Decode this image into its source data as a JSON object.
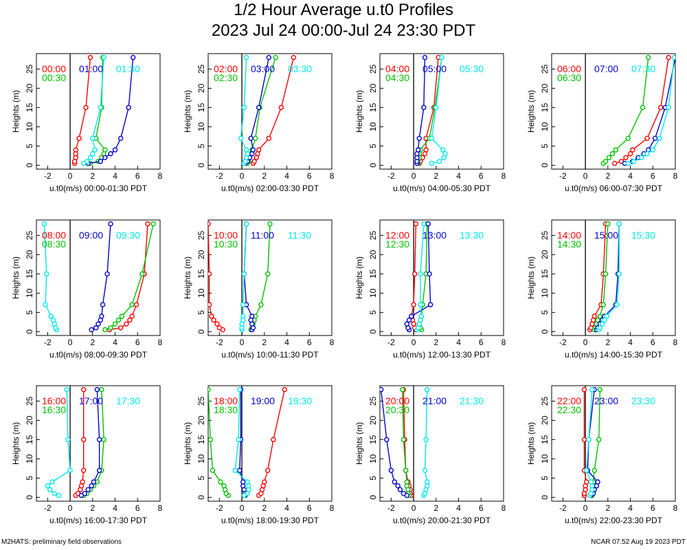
{
  "title": "1/2 Hour Average u.t0 Profiles",
  "subtitle": "2023 Jul 24 00:00-Jul 24 23:30 PDT",
  "footer_left": "M2HATS: preliminary field observations",
  "footer_right": "NCAR 07:52 Aug 19 2023 PDT",
  "colors": {
    "red": "#ff0000",
    "green": "#00c000",
    "blue": "#0000cc",
    "cyan": "#00e8e8"
  },
  "chart_data": {
    "type": "line",
    "ylabel": "Heights (m)",
    "xlim": [
      -3,
      8
    ],
    "ylim": [
      -1,
      29
    ],
    "xticks": [
      -2,
      0,
      2,
      4,
      6,
      8
    ],
    "yticks": [
      0,
      5,
      10,
      15,
      20,
      25
    ],
    "heights": [
      0.5,
      1,
      2,
      3,
      4,
      7,
      15,
      28
    ],
    "panels": [
      {
        "xlabel": "u.t0(m/s) 00:00-01:30 PDT",
        "series": [
          {
            "name": "00:00",
            "color": "red",
            "values": [
              0.4,
              0.4,
              0.5,
              0.5,
              0.5,
              0.8,
              1.4,
              1.8
            ]
          },
          {
            "name": "00:30",
            "color": "green",
            "values": [
              1.8,
              2.5,
              2.8,
              3.0,
              3.1,
              2.3,
              2.8,
              2.9
            ]
          },
          {
            "name": "01:00",
            "color": "blue",
            "values": [
              1.6,
              2.7,
              3.1,
              3.6,
              4.0,
              4.5,
              5.2,
              5.6
            ]
          },
          {
            "name": "01:30",
            "color": "cyan",
            "values": [
              1.2,
              1.5,
              1.8,
              2.0,
              2.2,
              2.0,
              2.7,
              3.0
            ]
          }
        ]
      },
      {
        "xlabel": "u.t0(m/s) 02:00-03:30 PDT",
        "series": [
          {
            "name": "02:00",
            "color": "red",
            "values": [
              1.0,
              1.1,
              1.3,
              1.4,
              1.5,
              2.4,
              3.5,
              4.6
            ]
          },
          {
            "name": "02:30",
            "color": "green",
            "values": [
              0.5,
              0.6,
              0.7,
              0.8,
              0.9,
              1.2,
              1.6,
              3.0
            ]
          },
          {
            "name": "03:00",
            "color": "blue",
            "values": [
              0.3,
              0.5,
              0.7,
              0.9,
              1.0,
              0.8,
              1.5,
              2.4
            ]
          },
          {
            "name": "03:30",
            "color": "cyan",
            "values": [
              0.2,
              0.3,
              0.4,
              0.5,
              0.4,
              -0.1,
              0.2,
              0.4
            ]
          }
        ]
      },
      {
        "xlabel": "u.t0(m/s) 04:00-05:30 PDT",
        "series": [
          {
            "name": "04:00",
            "color": "red",
            "values": [
              0.5,
              0.6,
              0.8,
              1.0,
              1.1,
              1.1,
              1.8,
              2.2
            ]
          },
          {
            "name": "04:30",
            "color": "green",
            "values": [
              0.4,
              0.4,
              0.5,
              0.5,
              0.6,
              1.4,
              1.9,
              2.5
            ]
          },
          {
            "name": "05:00",
            "color": "blue",
            "values": [
              0.3,
              0.3,
              0.3,
              0.3,
              0.4,
              0.5,
              0.9,
              1.0
            ]
          },
          {
            "name": "05:30",
            "color": "cyan",
            "values": [
              1.6,
              2.3,
              2.7,
              2.8,
              2.6,
              1.6,
              2.0,
              2.5
            ]
          }
        ]
      },
      {
        "xlabel": "u.t0(m/s) 06:00-07:30 PDT",
        "series": [
          {
            "name": "06:00",
            "color": "red",
            "values": [
              2.6,
              3.2,
              3.6,
              4.0,
              4.2,
              5.5,
              6.7,
              7.4
            ]
          },
          {
            "name": "06:30",
            "color": "green",
            "values": [
              1.6,
              1.8,
              2.1,
              2.4,
              2.7,
              3.8,
              5.1,
              5.6
            ]
          },
          {
            "name": "07:00",
            "color": "blue",
            "values": [
              3.5,
              4.2,
              4.7,
              5.2,
              5.6,
              6.2,
              7.1,
              8.0
            ]
          },
          {
            "name": "07:30",
            "color": "cyan",
            "values": [
              3.8,
              4.3,
              5.0,
              5.5,
              6.0,
              6.6,
              7.4,
              7.9
            ]
          }
        ]
      },
      {
        "xlabel": "u.t0(m/s) 08:00-09:30 PDT",
        "series": [
          {
            "name": "08:00",
            "color": "red",
            "values": [
              3.5,
              4.5,
              5.0,
              5.3,
              5.5,
              5.9,
              6.6,
              6.9
            ]
          },
          {
            "name": "08:30",
            "color": "green",
            "values": [
              3.1,
              3.6,
              4.0,
              4.3,
              4.6,
              5.5,
              6.4,
              7.4
            ]
          },
          {
            "name": "09:00",
            "color": "blue",
            "values": [
              1.9,
              2.3,
              2.5,
              2.7,
              2.8,
              2.9,
              3.3,
              3.6
            ]
          },
          {
            "name": "09:30",
            "color": "cyan",
            "values": [
              -1.2,
              -1.3,
              -1.4,
              -1.5,
              -1.7,
              -2.2,
              -2.1,
              -2.3
            ]
          }
        ]
      },
      {
        "xlabel": "u.t0(m/s) 10:00-11:30 PDT",
        "series": [
          {
            "name": "10:00",
            "color": "red",
            "values": [
              -1.7,
              -2.0,
              -2.2,
              -2.5,
              -2.7,
              -2.9,
              -2.9,
              -3.0
            ]
          },
          {
            "name": "10:30",
            "color": "green",
            "values": [
              0.8,
              0.9,
              1.0,
              1.1,
              1.2,
              1.7,
              2.3,
              2.5
            ]
          },
          {
            "name": "11:00",
            "color": "blue",
            "values": [
              0.9,
              1.0,
              0.9,
              0.8,
              0.9,
              0.4,
              0.2,
              0.4
            ]
          },
          {
            "name": "11:30",
            "color": "cyan",
            "values": [
              0.0,
              0.0,
              0.0,
              0.1,
              0.1,
              0.1,
              0.2,
              0.4
            ]
          }
        ]
      },
      {
        "xlabel": "u.t0(m/s) 12:00-13:30 PDT",
        "series": [
          {
            "name": "12:00",
            "color": "red",
            "values": [
              0.2,
              0.1,
              0.0,
              -0.1,
              -0.2,
              0.0,
              0.1,
              0.2
            ]
          },
          {
            "name": "12:30",
            "color": "green",
            "values": [
              0.7,
              0.6,
              0.5,
              0.6,
              0.7,
              0.8,
              1.1,
              1.2
            ]
          },
          {
            "name": "13:00",
            "color": "blue",
            "values": [
              -0.4,
              -0.5,
              -0.6,
              -0.4,
              -0.2,
              1.5,
              1.4,
              1.3
            ]
          },
          {
            "name": "13:30",
            "color": "cyan",
            "values": [
              0.3,
              0.4,
              0.5,
              0.6,
              0.7,
              0.6,
              0.6,
              0.9
            ]
          }
        ]
      },
      {
        "xlabel": "u.t0(m/s) 14:00-15:30 PDT",
        "series": [
          {
            "name": "14:00",
            "color": "red",
            "values": [
              0.4,
              0.5,
              0.6,
              0.7,
              0.8,
              1.4,
              1.6,
              1.8
            ]
          },
          {
            "name": "14:30",
            "color": "green",
            "values": [
              0.8,
              0.9,
              1.0,
              1.1,
              1.3,
              1.6,
              1.8,
              2.0
            ]
          },
          {
            "name": "15:00",
            "color": "blue",
            "values": [
              1.0,
              1.1,
              1.3,
              1.5,
              1.7,
              2.7,
              2.9,
              3.0
            ]
          },
          {
            "name": "15:30",
            "color": "cyan",
            "values": [
              1.2,
              1.3,
              1.5,
              1.7,
              1.9,
              2.8,
              3.0,
              3.0
            ]
          }
        ]
      },
      {
        "xlabel": "u.t0(m/s) 16:00-17:30 PDT",
        "series": [
          {
            "name": "16:00",
            "color": "red",
            "values": [
              0.5,
              0.7,
              0.9,
              1.0,
              1.1,
              1.2,
              1.2,
              1.2
            ]
          },
          {
            "name": "16:30",
            "color": "green",
            "values": [
              1.2,
              1.5,
              1.8,
              2.1,
              2.4,
              2.8,
              3.0,
              2.8
            ]
          },
          {
            "name": "17:00",
            "color": "blue",
            "values": [
              1.0,
              1.3,
              1.6,
              1.9,
              2.1,
              2.6,
              2.6,
              2.4
            ]
          },
          {
            "name": "17:30",
            "color": "cyan",
            "values": [
              -1.0,
              -1.4,
              -1.8,
              -2.0,
              -1.6,
              0.0,
              -0.2,
              -0.3
            ]
          }
        ]
      },
      {
        "xlabel": "u.t0(m/s) 18:00-19:30 PDT",
        "series": [
          {
            "name": "18:00",
            "color": "red",
            "values": [
              1.5,
              1.7,
              1.8,
              1.9,
              2.0,
              2.3,
              2.8,
              3.8
            ]
          },
          {
            "name": "18:30",
            "color": "green",
            "values": [
              -1.2,
              -1.4,
              -1.5,
              -1.6,
              -1.9,
              -2.6,
              -2.8,
              -3.0
            ]
          },
          {
            "name": "19:00",
            "color": "blue",
            "values": [
              0.3,
              0.3,
              0.2,
              0.1,
              0.1,
              -0.2,
              -0.1,
              -0.1
            ]
          },
          {
            "name": "19:30",
            "color": "cyan",
            "values": [
              0.2,
              0.5,
              0.6,
              0.6,
              0.5,
              -0.6,
              -0.3,
              -0.2
            ]
          }
        ]
      },
      {
        "xlabel": "u.t0(m/s) 20:00-21:30 PDT",
        "series": [
          {
            "name": "20:00",
            "color": "red",
            "values": [
              -0.2,
              -0.3,
              -0.3,
              -0.4,
              -0.5,
              -0.7,
              -0.8,
              -0.9
            ]
          },
          {
            "name": "20:30",
            "color": "green",
            "values": [
              -0.4,
              -0.5,
              -0.5,
              -0.6,
              -0.6,
              -0.7,
              -0.9,
              -1.0
            ]
          },
          {
            "name": "21:00",
            "color": "blue",
            "values": [
              -0.6,
              -0.9,
              -1.2,
              -1.4,
              -1.7,
              -2.0,
              -2.4,
              -2.9
            ]
          },
          {
            "name": "21:30",
            "color": "cyan",
            "values": [
              0.9,
              1.0,
              1.1,
              1.2,
              1.2,
              1.0,
              1.1,
              1.2
            ]
          }
        ]
      },
      {
        "xlabel": "u.t0(m/s) 22:00-23:30 PDT",
        "series": [
          {
            "name": "22:00",
            "color": "red",
            "values": [
              -0.1,
              -0.1,
              0.0,
              0.0,
              0.1,
              -0.1,
              -0.1,
              -0.1
            ]
          },
          {
            "name": "22:30",
            "color": "green",
            "values": [
              0.6,
              0.7,
              0.7,
              0.7,
              0.7,
              0.8,
              1.2,
              1.3
            ]
          },
          {
            "name": "23:00",
            "color": "blue",
            "values": [
              0.5,
              0.7,
              0.8,
              1.0,
              1.1,
              0.2,
              0.3,
              0.8
            ]
          },
          {
            "name": "23:30",
            "color": "cyan",
            "values": [
              0.4,
              0.5,
              0.6,
              0.6,
              0.5,
              0.1,
              0.3,
              0.6
            ]
          }
        ]
      }
    ]
  }
}
